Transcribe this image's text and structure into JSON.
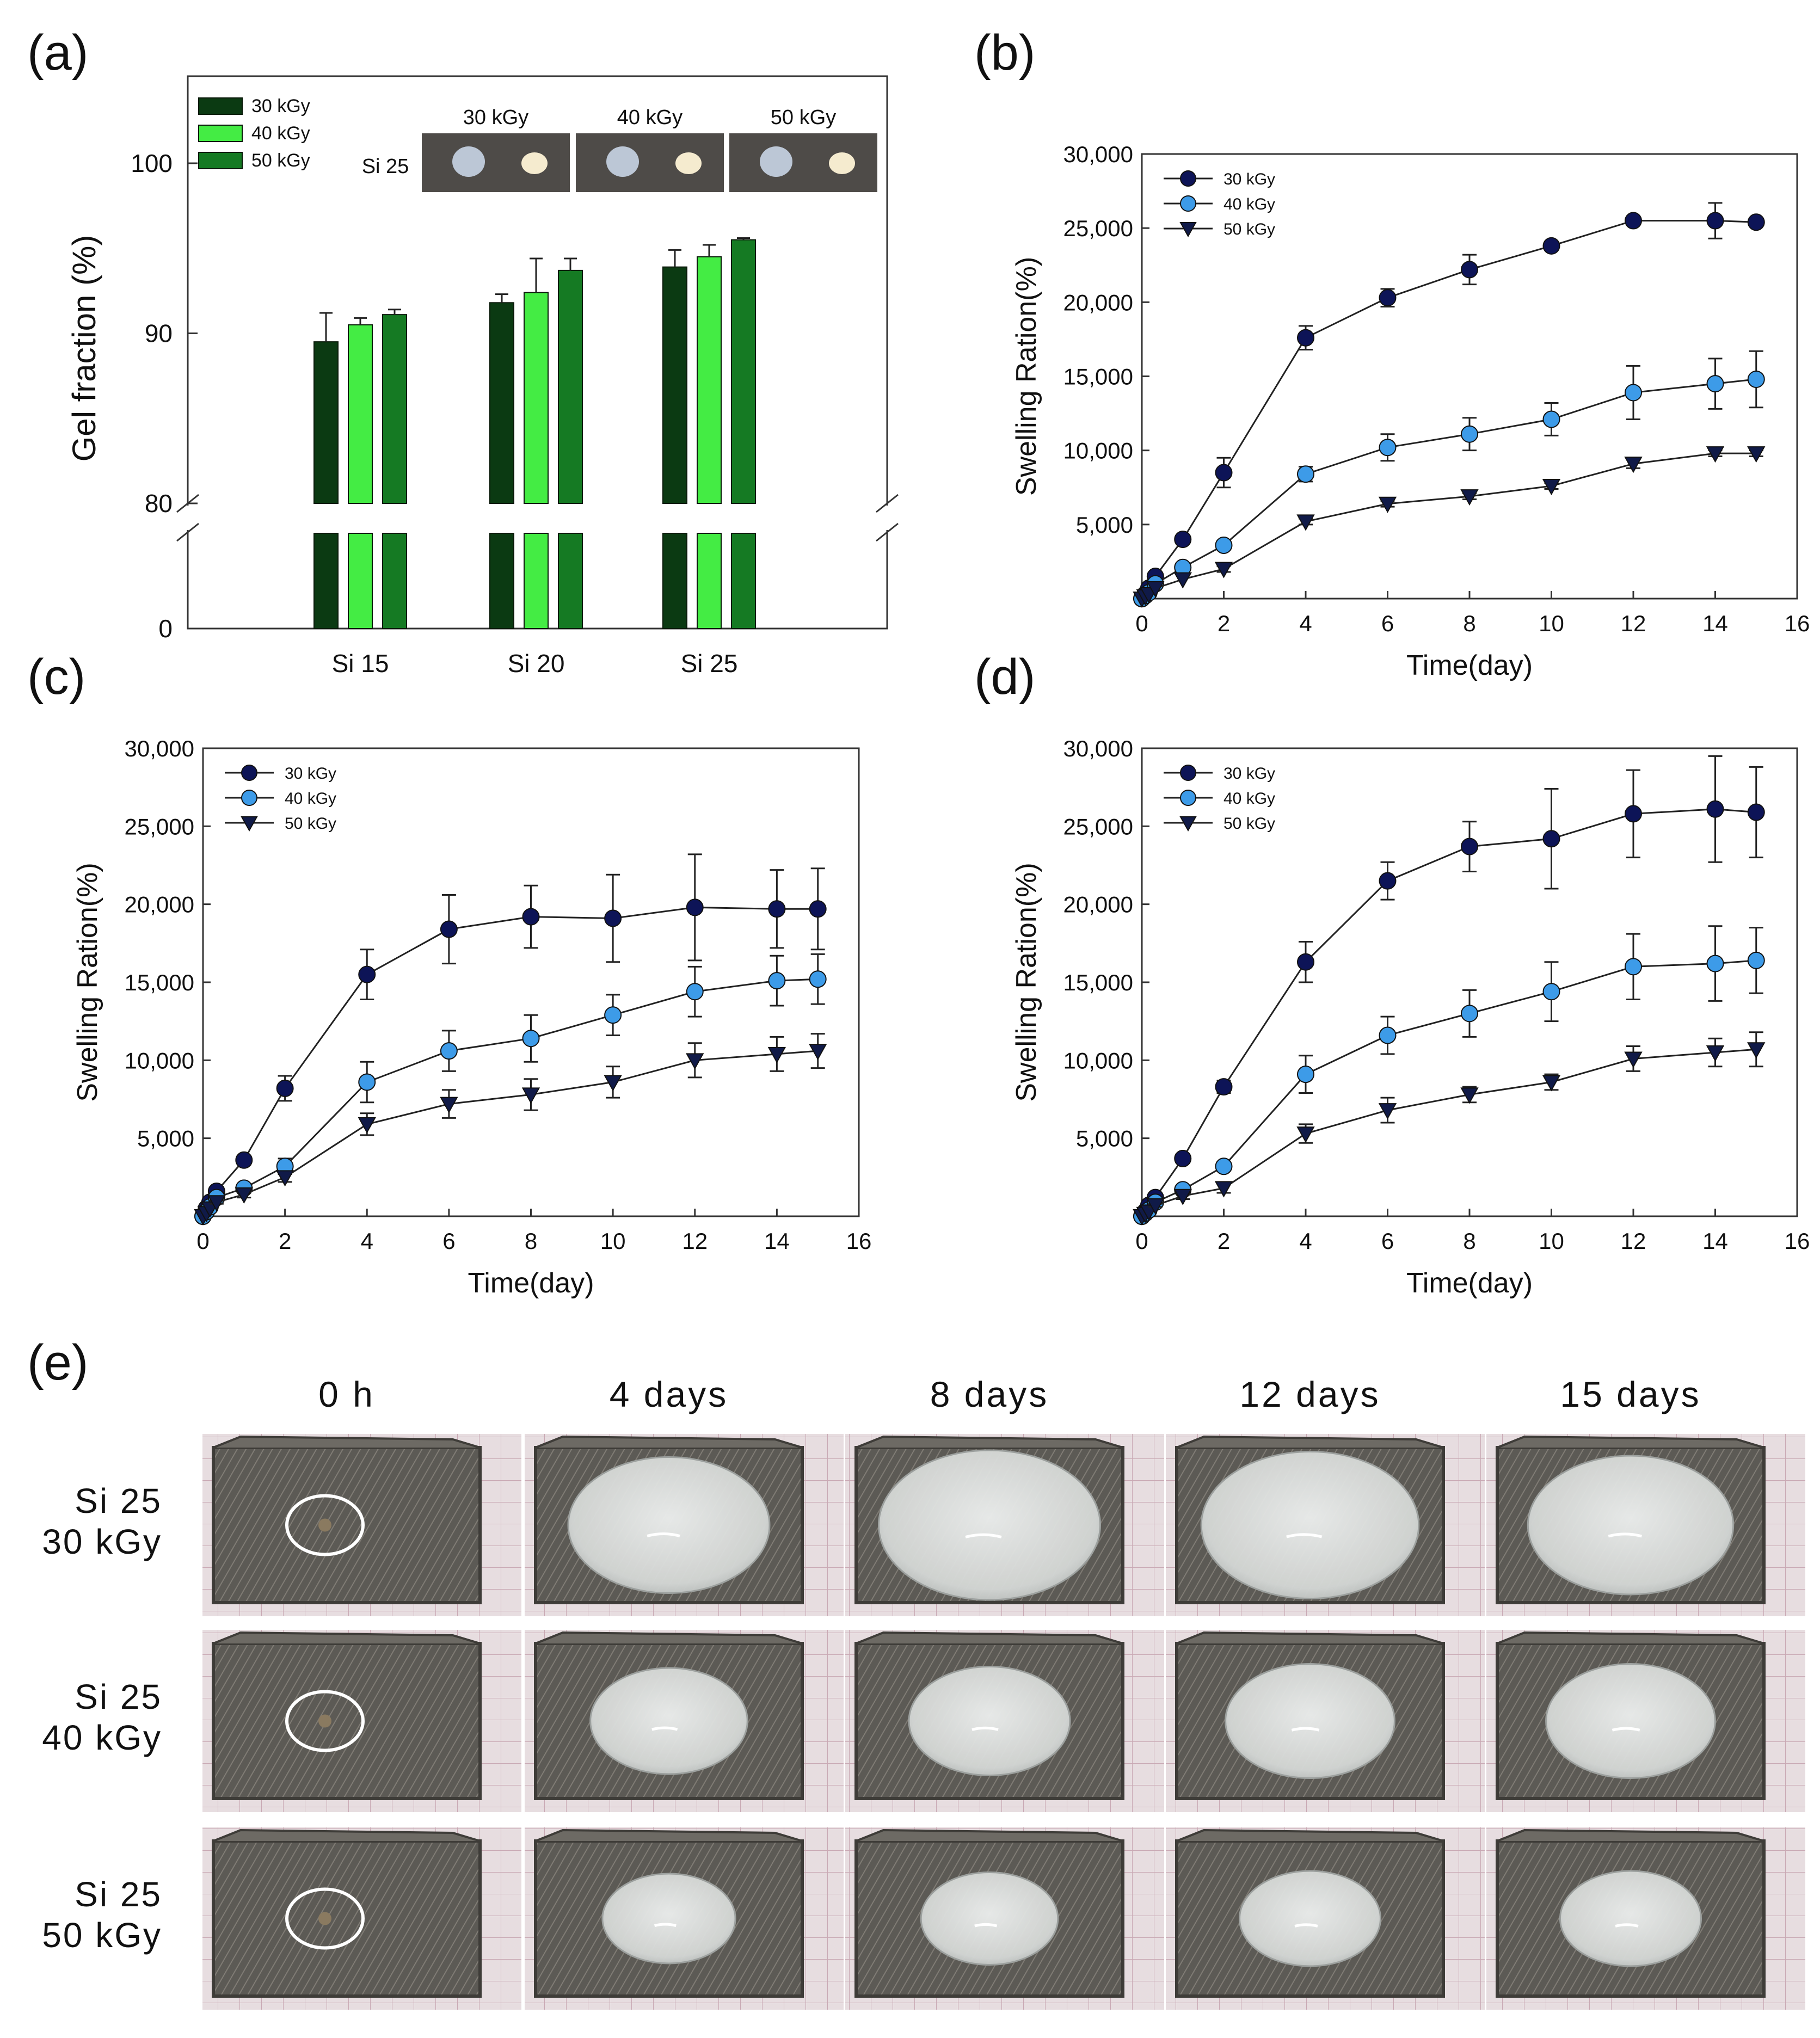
{
  "colors": {
    "bar_30": "#0b3a12",
    "bar_40": "#44ec44",
    "bar_50": "#157a23",
    "line_30": "#0d1457",
    "line_40": "#3d9be8",
    "line_50": "#101a48",
    "photo_bg": "#6f6c66",
    "gel": "#d9dcd9"
  },
  "panel_a": {
    "letter": "(a)",
    "inset": {
      "row_label": "Si 25",
      "columns": [
        "30 kGy",
        "40 kGy",
        "50 kGy"
      ]
    }
  },
  "panel_b": {
    "letter": "(b)"
  },
  "panel_c": {
    "letter": "(c)"
  },
  "panel_d": {
    "letter": "(d)"
  },
  "panel_e": {
    "letter": "(e)",
    "columns": [
      "0 h",
      "4 days",
      "8 days",
      "12 days",
      "15 days"
    ],
    "rows": [
      {
        "line1": "Si 25",
        "line2": "30 kGy",
        "gel_scale": [
          0,
          1.0,
          1.1,
          1.08,
          1.02
        ]
      },
      {
        "line1": "Si 25",
        "line2": "40 kGy",
        "gel_scale": [
          0,
          0.78,
          0.8,
          0.84,
          0.84
        ]
      },
      {
        "line1": "Si 25",
        "line2": "50 kGy",
        "gel_scale": [
          0,
          0.66,
          0.68,
          0.7,
          0.7
        ]
      }
    ]
  },
  "chart_data": [
    {
      "id": "a",
      "type": "bar",
      "categories": [
        "Si 15",
        "Si 20",
        "Si 25"
      ],
      "series": [
        {
          "name": "30 kGy",
          "values": [
            89.5,
            91.8,
            93.9
          ],
          "errors": [
            1.7,
            0.5,
            1.0
          ]
        },
        {
          "name": "40 kGy",
          "values": [
            90.5,
            92.4,
            94.5
          ],
          "errors": [
            0.4,
            2.0,
            0.7
          ]
        },
        {
          "name": "50 kGy",
          "values": [
            91.1,
            93.7,
            95.5
          ],
          "errors": [
            0.3,
            0.7,
            0.1
          ]
        }
      ],
      "xlabel": "",
      "ylabel": "Gel fraction (%)",
      "ylim_upper": [
        80,
        105
      ],
      "ylim_lower": [
        0,
        80
      ],
      "yticks": [
        "0",
        "80",
        "90",
        "100"
      ],
      "axis_break": true,
      "legend": "top-left"
    },
    {
      "id": "b",
      "type": "line",
      "x": [
        0,
        0.083,
        0.17,
        0.33,
        1,
        2,
        4,
        6,
        8,
        10,
        12,
        14,
        15
      ],
      "series": [
        {
          "name": "30 kGy",
          "marker": "circle",
          "values": [
            0,
            300,
            700,
            1500,
            4000,
            8500,
            17600,
            20300,
            22200,
            23800,
            25500,
            25500,
            25400
          ],
          "errors": [
            0,
            0,
            0,
            200,
            300,
            1000,
            800,
            600,
            1000,
            300,
            300,
            1200,
            200
          ]
        },
        {
          "name": "40 kGy",
          "marker": "circle",
          "values": [
            0,
            200,
            400,
            1000,
            2100,
            3600,
            8400,
            10200,
            11100,
            12100,
            13900,
            14500,
            14800
          ],
          "errors": [
            0,
            0,
            0,
            200,
            300,
            300,
            500,
            900,
            1100,
            1100,
            1800,
            1700,
            1900
          ]
        },
        {
          "name": "50 kGy",
          "marker": "triangle-down",
          "values": [
            0,
            150,
            300,
            700,
            1300,
            2000,
            5200,
            6400,
            6900,
            7600,
            9100,
            9800,
            9800
          ],
          "errors": [
            0,
            0,
            0,
            0,
            0,
            200,
            200,
            200,
            200,
            200,
            300,
            200,
            200
          ]
        }
      ],
      "xlabel": "Time(day)",
      "ylabel": "Swelling Ration(%)",
      "xlim": [
        0,
        16
      ],
      "ylim": [
        0,
        30000
      ],
      "xticks": [
        "0",
        "2",
        "4",
        "6",
        "8",
        "10",
        "12",
        "14",
        "16"
      ],
      "yticks": [
        "5,000",
        "10,000",
        "15,000",
        "20,000",
        "25,000",
        "30,000"
      ],
      "legend": "top-left"
    },
    {
      "id": "c",
      "type": "line",
      "x": [
        0,
        0.083,
        0.17,
        0.33,
        1,
        2,
        4,
        6,
        8,
        10,
        12,
        14,
        15
      ],
      "series": [
        {
          "name": "30 kGy",
          "marker": "circle",
          "values": [
            0,
            500,
            900,
            1600,
            3600,
            8200,
            15500,
            18400,
            19200,
            19100,
            19800,
            19700,
            19700
          ],
          "errors": [
            0,
            0,
            0,
            300,
            300,
            800,
            1600,
            2200,
            2000,
            2800,
            3400,
            2500,
            2600
          ]
        },
        {
          "name": "40 kGy",
          "marker": "circle",
          "values": [
            0,
            300,
            600,
            1200,
            1800,
            3200,
            8600,
            10600,
            11400,
            12900,
            14400,
            15100,
            15200
          ],
          "errors": [
            0,
            0,
            0,
            200,
            300,
            500,
            1300,
            1300,
            1500,
            1300,
            1600,
            1600,
            1600
          ]
        },
        {
          "name": "50 kGy",
          "marker": "triangle-down",
          "values": [
            0,
            200,
            500,
            900,
            1400,
            2500,
            5900,
            7200,
            7800,
            8600,
            10000,
            10400,
            10600
          ],
          "errors": [
            0,
            0,
            0,
            100,
            200,
            300,
            700,
            900,
            1000,
            1000,
            1100,
            1100,
            1100
          ]
        }
      ],
      "xlabel": "Time(day)",
      "ylabel": "Swelling Ration(%)",
      "xlim": [
        0,
        16
      ],
      "ylim": [
        0,
        30000
      ],
      "xticks": [
        "0",
        "2",
        "4",
        "6",
        "8",
        "10",
        "12",
        "14",
        "16"
      ],
      "yticks": [
        "5,000",
        "10,000",
        "15,000",
        "20,000",
        "25,000",
        "30,000"
      ],
      "legend": "top-left"
    },
    {
      "id": "d",
      "type": "line",
      "x": [
        0,
        0.083,
        0.17,
        0.33,
        1,
        2,
        4,
        6,
        8,
        10,
        12,
        14,
        15
      ],
      "series": [
        {
          "name": "30 kGy",
          "marker": "circle",
          "values": [
            0,
            300,
            700,
            1200,
            3700,
            8300,
            16300,
            21500,
            23700,
            24200,
            25800,
            26100,
            25900
          ],
          "errors": [
            0,
            0,
            0,
            200,
            300,
            400,
            1300,
            1200,
            1600,
            3200,
            2800,
            3400,
            2900
          ]
        },
        {
          "name": "40 kGy",
          "marker": "circle",
          "values": [
            0,
            200,
            400,
            900,
            1700,
            3200,
            9100,
            11600,
            13000,
            14400,
            16000,
            16200,
            16400
          ],
          "errors": [
            0,
            0,
            0,
            100,
            200,
            300,
            1200,
            1200,
            1500,
            1900,
            2100,
            2400,
            2100
          ]
        },
        {
          "name": "50 kGy",
          "marker": "triangle-down",
          "values": [
            0,
            150,
            300,
            700,
            1300,
            1800,
            5300,
            6800,
            7800,
            8600,
            10100,
            10500,
            10700
          ],
          "errors": [
            0,
            0,
            0,
            100,
            200,
            300,
            600,
            800,
            500,
            500,
            800,
            900,
            1100
          ]
        }
      ],
      "xlabel": "Time(day)",
      "ylabel": "Swelling Ration(%)",
      "xlim": [
        0,
        16
      ],
      "ylim": [
        0,
        30000
      ],
      "xticks": [
        "0",
        "2",
        "4",
        "6",
        "8",
        "10",
        "12",
        "14",
        "16"
      ],
      "yticks": [
        "5,000",
        "10,000",
        "15,000",
        "20,000",
        "25,000",
        "30,000"
      ],
      "legend": "top-left"
    }
  ]
}
